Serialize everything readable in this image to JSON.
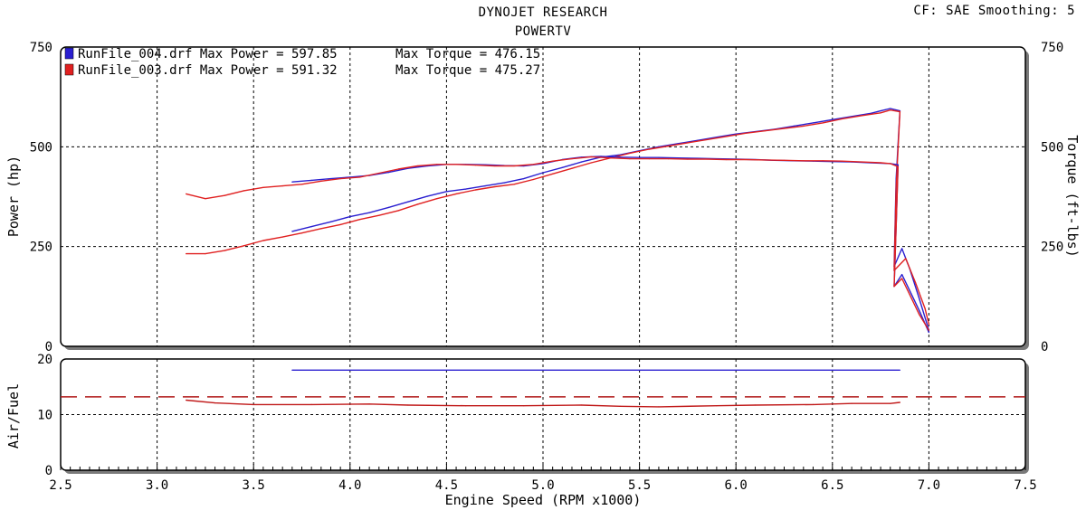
{
  "header": {
    "title": "DYNOJET RESEARCH",
    "subtitle": "POWERTV",
    "cf_info": "CF: SAE  Smoothing: 5"
  },
  "chart_data": [
    {
      "type": "line",
      "panel": "power",
      "xlim": [
        2.5,
        7.5
      ],
      "xticks": [
        "2.5",
        "3.0",
        "3.5",
        "4.0",
        "4.5",
        "5.0",
        "5.5",
        "6.0",
        "6.5",
        "7.0",
        "7.5"
      ],
      "ylim": [
        0,
        750
      ],
      "yticks": [
        "0",
        "250",
        "500",
        "750"
      ],
      "ylabel": "Power (hp)",
      "ylabel_right": "Torque (ft-lbs)",
      "yticks_right": [
        "0",
        "250",
        "500",
        "750"
      ],
      "grid": true,
      "legend_position": "top-left",
      "legend": [
        {
          "file": "RunFile_004.drf",
          "text": "RunFile_004.drf Max Power = 597.85",
          "torque_text": "Max Torque = 476.15",
          "color": "#2a1fd0"
        },
        {
          "file": "RunFile_003.drf",
          "text": "RunFile_003.drf Max Power = 591.32",
          "torque_text": "Max Torque = 475.27",
          "color": "#e02020"
        }
      ],
      "series": [
        {
          "name": "RunFile_004.drf",
          "measure": "power",
          "color": "#2a1fd0",
          "x": [
            3.7,
            3.8,
            3.9,
            4.0,
            4.1,
            4.2,
            4.3,
            4.4,
            4.5,
            4.6,
            4.7,
            4.8,
            4.9,
            5.0,
            5.1,
            5.2,
            5.3,
            5.4,
            5.5,
            5.6,
            5.7,
            5.8,
            5.9,
            6.0,
            6.1,
            6.2,
            6.3,
            6.4,
            6.5,
            6.6,
            6.7,
            6.75,
            6.8,
            6.85,
            6.83,
            6.82,
            6.86,
            6.9,
            6.95,
            7.0
          ],
          "y": [
            288,
            300,
            312,
            325,
            335,
            348,
            362,
            376,
            388,
            394,
            402,
            410,
            420,
            435,
            448,
            462,
            474,
            480,
            490,
            500,
            508,
            516,
            524,
            532,
            538,
            544,
            552,
            560,
            568,
            576,
            584,
            590,
            596,
            590,
            420,
            200,
            245,
            195,
            120,
            40
          ]
        },
        {
          "name": "RunFile_003.drf",
          "measure": "power",
          "color": "#e02020",
          "x": [
            3.15,
            3.25,
            3.35,
            3.45,
            3.55,
            3.65,
            3.75,
            3.85,
            3.95,
            4.05,
            4.15,
            4.25,
            4.35,
            4.45,
            4.55,
            4.65,
            4.75,
            4.85,
            4.95,
            5.05,
            5.15,
            5.25,
            5.35,
            5.45,
            5.55,
            5.65,
            5.75,
            5.85,
            5.95,
            6.05,
            6.15,
            6.25,
            6.35,
            6.45,
            6.55,
            6.65,
            6.75,
            6.8,
            6.85,
            6.83,
            6.82,
            6.88,
            6.93,
            6.98,
            7.0
          ],
          "y": [
            232,
            232,
            240,
            252,
            265,
            274,
            284,
            295,
            305,
            318,
            328,
            340,
            356,
            370,
            382,
            392,
            400,
            406,
            418,
            432,
            446,
            460,
            472,
            484,
            494,
            502,
            510,
            518,
            526,
            534,
            540,
            546,
            552,
            560,
            570,
            578,
            585,
            592,
            588,
            400,
            190,
            220,
            160,
            95,
            55
          ]
        },
        {
          "name": "RunFile_004.drf",
          "measure": "torque",
          "color": "#2a1fd0",
          "x": [
            3.7,
            3.8,
            3.9,
            4.0,
            4.1,
            4.2,
            4.3,
            4.4,
            4.5,
            4.6,
            4.7,
            4.8,
            4.9,
            5.0,
            5.1,
            5.2,
            5.3,
            5.4,
            5.5,
            5.6,
            5.7,
            5.8,
            5.9,
            6.0,
            6.1,
            6.2,
            6.3,
            6.4,
            6.5,
            6.6,
            6.7,
            6.8,
            6.84,
            6.83,
            6.82,
            6.86,
            6.9,
            6.95,
            7.0
          ],
          "y": [
            412,
            416,
            420,
            424,
            428,
            436,
            446,
            452,
            456,
            456,
            455,
            453,
            452,
            458,
            468,
            474,
            476,
            474,
            473,
            473,
            472,
            471,
            470,
            469,
            468,
            466,
            465,
            464,
            463,
            462,
            460,
            458,
            455,
            300,
            150,
            180,
            140,
            90,
            35
          ]
        },
        {
          "name": "RunFile_003.drf",
          "measure": "torque",
          "color": "#e02020",
          "x": [
            3.15,
            3.25,
            3.35,
            3.45,
            3.55,
            3.65,
            3.75,
            3.85,
            3.95,
            4.05,
            4.15,
            4.25,
            4.35,
            4.45,
            4.55,
            4.65,
            4.75,
            4.85,
            4.95,
            5.05,
            5.15,
            5.25,
            5.35,
            5.45,
            5.55,
            5.65,
            5.75,
            5.85,
            5.95,
            6.05,
            6.15,
            6.25,
            6.35,
            6.45,
            6.55,
            6.65,
            6.75,
            6.8,
            6.84,
            6.83,
            6.82,
            6.86,
            6.9,
            6.95,
            7.0
          ],
          "y": [
            382,
            370,
            378,
            390,
            398,
            402,
            406,
            414,
            420,
            424,
            434,
            444,
            452,
            456,
            456,
            454,
            452,
            452,
            456,
            464,
            470,
            475,
            472,
            470,
            470,
            470,
            469,
            469,
            468,
            468,
            467,
            466,
            465,
            465,
            464,
            462,
            460,
            458,
            450,
            300,
            150,
            170,
            130,
            80,
            40
          ]
        }
      ]
    },
    {
      "type": "line",
      "panel": "air-fuel",
      "xlim": [
        2.5,
        7.5
      ],
      "xticks": [
        "2.5",
        "3.0",
        "3.5",
        "4.0",
        "4.5",
        "5.0",
        "5.5",
        "6.0",
        "6.5",
        "7.0",
        "7.5"
      ],
      "xlabel": "Engine Speed (RPM x1000)",
      "ylim": [
        0,
        20
      ],
      "yticks": [
        "0",
        "10",
        "20"
      ],
      "ylabel": "Air/Fuel",
      "grid": true,
      "reference_line": {
        "y": 13.2,
        "style": "dashed",
        "color": "#b01818"
      },
      "series": [
        {
          "name": "RunFile_004.drf",
          "color": "#2a1fd0",
          "x": [
            3.7,
            6.85
          ],
          "y": [
            18,
            18
          ]
        },
        {
          "name": "RunFile_003.drf",
          "color": "#c01818",
          "x": [
            3.15,
            3.3,
            3.5,
            3.8,
            4.1,
            4.3,
            4.6,
            4.9,
            5.2,
            5.4,
            5.6,
            5.9,
            6.1,
            6.4,
            6.6,
            6.8,
            6.85
          ],
          "y": [
            12.6,
            12.1,
            11.8,
            11.8,
            11.9,
            11.7,
            11.6,
            11.6,
            11.7,
            11.5,
            11.4,
            11.6,
            11.7,
            11.8,
            12.0,
            12.0,
            12.2
          ]
        }
      ]
    }
  ]
}
